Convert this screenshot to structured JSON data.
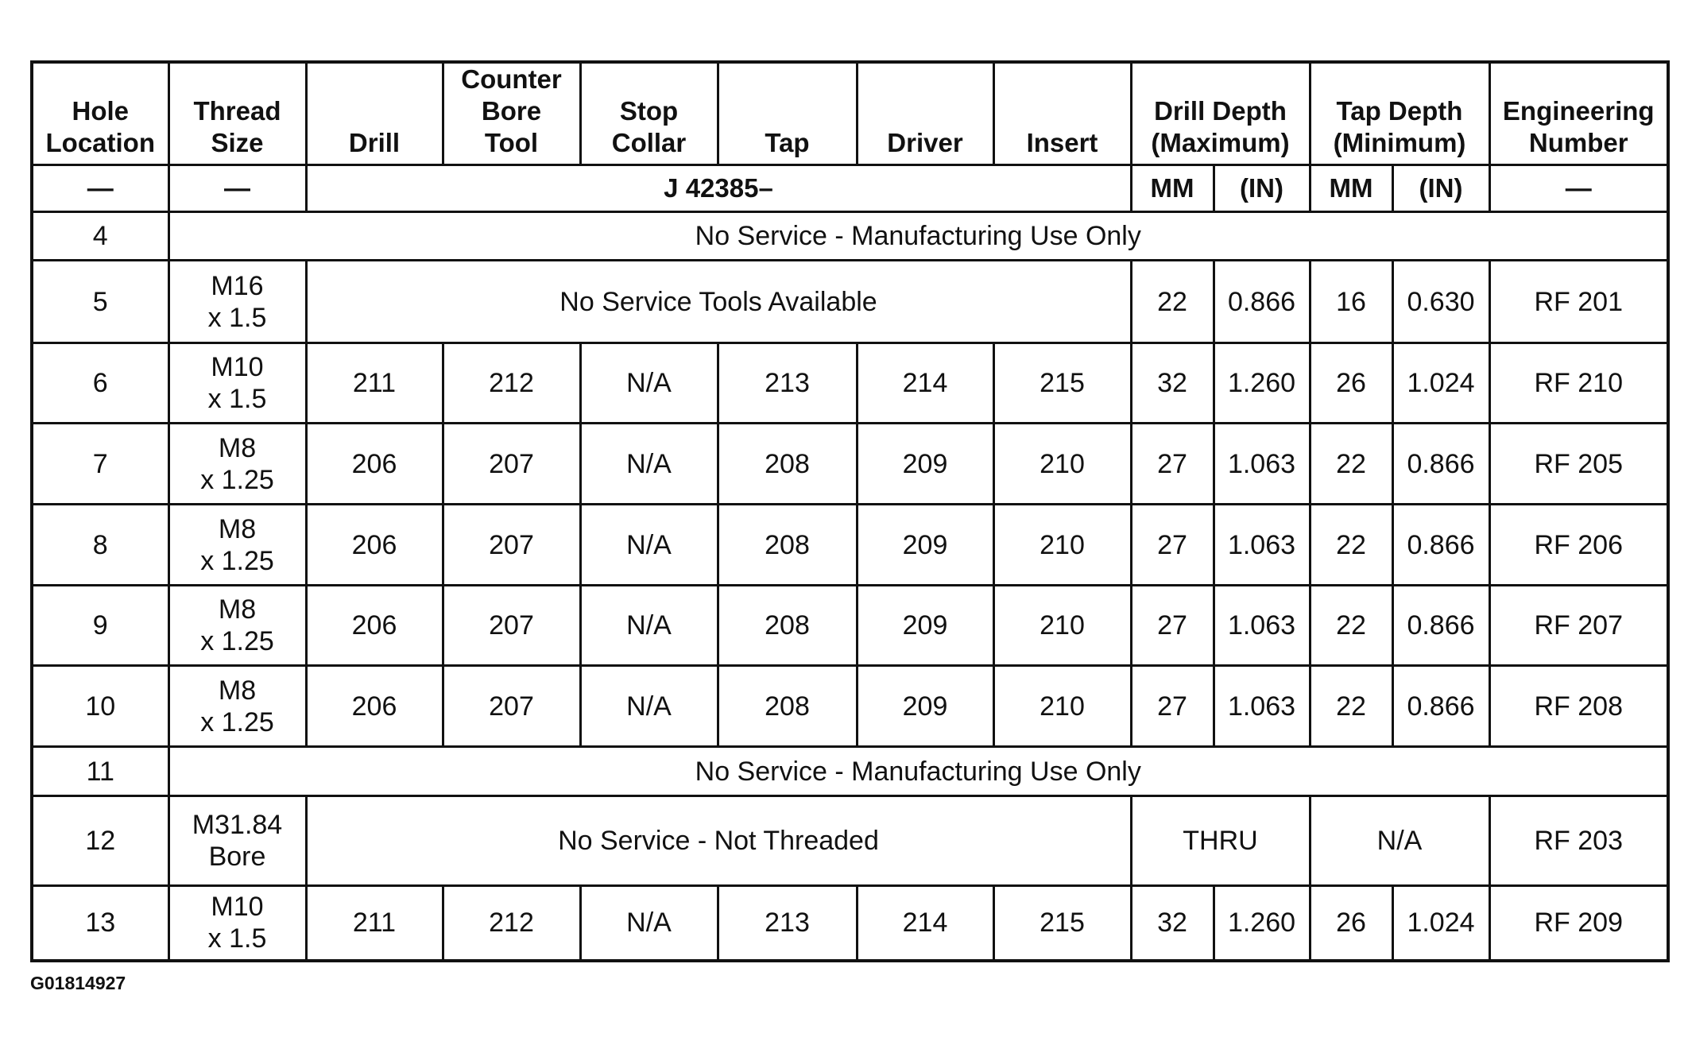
{
  "table": {
    "header": [
      {
        "text": "Hole\nLocation"
      },
      {
        "text": "Thread\nSize"
      },
      {
        "text": "Drill"
      },
      {
        "text": "Counter\nBore\nTool"
      },
      {
        "text": "Stop\nCollar"
      },
      {
        "text": "Tap"
      },
      {
        "text": "Driver"
      },
      {
        "text": "Insert"
      },
      {
        "text": "Drill Depth\n(Maximum)",
        "span": 2
      },
      {
        "text": "Tap Depth\n(Minimum)",
        "span": 2
      },
      {
        "text": "Engineering\nNumber"
      }
    ],
    "subheader": [
      {
        "text": "—"
      },
      {
        "text": "—"
      },
      {
        "text": "J 42385–",
        "span": 6
      },
      {
        "text": "MM"
      },
      {
        "text": "(IN)"
      },
      {
        "text": "MM"
      },
      {
        "text": "(IN)"
      },
      {
        "text": "—"
      }
    ],
    "rows": [
      {
        "h": "4",
        "cells": [
          {
            "text": "4"
          },
          {
            "text": "No Service - Manufacturing Use Only",
            "span": 12
          }
        ]
      },
      {
        "h": "5",
        "cells": [
          {
            "text": "5"
          },
          {
            "text": "M16\nx 1.5"
          },
          {
            "text": "No Service Tools Available",
            "span": 6
          },
          {
            "text": "22"
          },
          {
            "text": "0.866"
          },
          {
            "text": "16"
          },
          {
            "text": "0.630"
          },
          {
            "text": "RF 201"
          }
        ]
      },
      {
        "h": "6",
        "cells": [
          {
            "text": "6"
          },
          {
            "text": "M10\nx 1.5"
          },
          {
            "text": "211"
          },
          {
            "text": "212"
          },
          {
            "text": "N/A"
          },
          {
            "text": "213"
          },
          {
            "text": "214"
          },
          {
            "text": "215"
          },
          {
            "text": "32"
          },
          {
            "text": "1.260"
          },
          {
            "text": "26"
          },
          {
            "text": "1.024"
          },
          {
            "text": "RF 210"
          }
        ]
      },
      {
        "h": "7",
        "cells": [
          {
            "text": "7"
          },
          {
            "text": "M8\nx 1.25"
          },
          {
            "text": "206"
          },
          {
            "text": "207"
          },
          {
            "text": "N/A"
          },
          {
            "text": "208"
          },
          {
            "text": "209"
          },
          {
            "text": "210"
          },
          {
            "text": "27"
          },
          {
            "text": "1.063"
          },
          {
            "text": "22"
          },
          {
            "text": "0.866"
          },
          {
            "text": "RF 205"
          }
        ]
      },
      {
        "h": "8",
        "cells": [
          {
            "text": "8"
          },
          {
            "text": "M8\nx 1.25"
          },
          {
            "text": "206"
          },
          {
            "text": "207"
          },
          {
            "text": "N/A"
          },
          {
            "text": "208"
          },
          {
            "text": "209"
          },
          {
            "text": "210"
          },
          {
            "text": "27"
          },
          {
            "text": "1.063"
          },
          {
            "text": "22"
          },
          {
            "text": "0.866"
          },
          {
            "text": "RF 206"
          }
        ]
      },
      {
        "h": "9",
        "cells": [
          {
            "text": "9"
          },
          {
            "text": "M8\nx 1.25"
          },
          {
            "text": "206"
          },
          {
            "text": "207"
          },
          {
            "text": "N/A"
          },
          {
            "text": "208"
          },
          {
            "text": "209"
          },
          {
            "text": "210"
          },
          {
            "text": "27"
          },
          {
            "text": "1.063"
          },
          {
            "text": "22"
          },
          {
            "text": "0.866"
          },
          {
            "text": "RF 207"
          }
        ]
      },
      {
        "h": "10",
        "cells": [
          {
            "text": "10"
          },
          {
            "text": "M8\nx 1.25"
          },
          {
            "text": "206"
          },
          {
            "text": "207"
          },
          {
            "text": "N/A"
          },
          {
            "text": "208"
          },
          {
            "text": "209"
          },
          {
            "text": "210"
          },
          {
            "text": "27"
          },
          {
            "text": "1.063"
          },
          {
            "text": "22"
          },
          {
            "text": "0.866"
          },
          {
            "text": "RF 208"
          }
        ]
      },
      {
        "h": "11",
        "cells": [
          {
            "text": "11"
          },
          {
            "text": "No Service - Manufacturing Use Only",
            "span": 12
          }
        ]
      },
      {
        "h": "12",
        "cells": [
          {
            "text": "12"
          },
          {
            "text": "M31.84\nBore"
          },
          {
            "text": "No Service - Not Threaded",
            "span": 6
          },
          {
            "text": "THRU",
            "span": 2
          },
          {
            "text": "N/A",
            "span": 2
          },
          {
            "text": "RF 203"
          }
        ]
      },
      {
        "h": "13",
        "cells": [
          {
            "text": "13"
          },
          {
            "text": "M10\nx 1.5"
          },
          {
            "text": "211"
          },
          {
            "text": "212"
          },
          {
            "text": "N/A"
          },
          {
            "text": "213"
          },
          {
            "text": "214"
          },
          {
            "text": "215"
          },
          {
            "text": "32"
          },
          {
            "text": "1.260"
          },
          {
            "text": "26"
          },
          {
            "text": "1.024"
          },
          {
            "text": "RF 209"
          }
        ]
      }
    ]
  },
  "caption": "G01814927"
}
